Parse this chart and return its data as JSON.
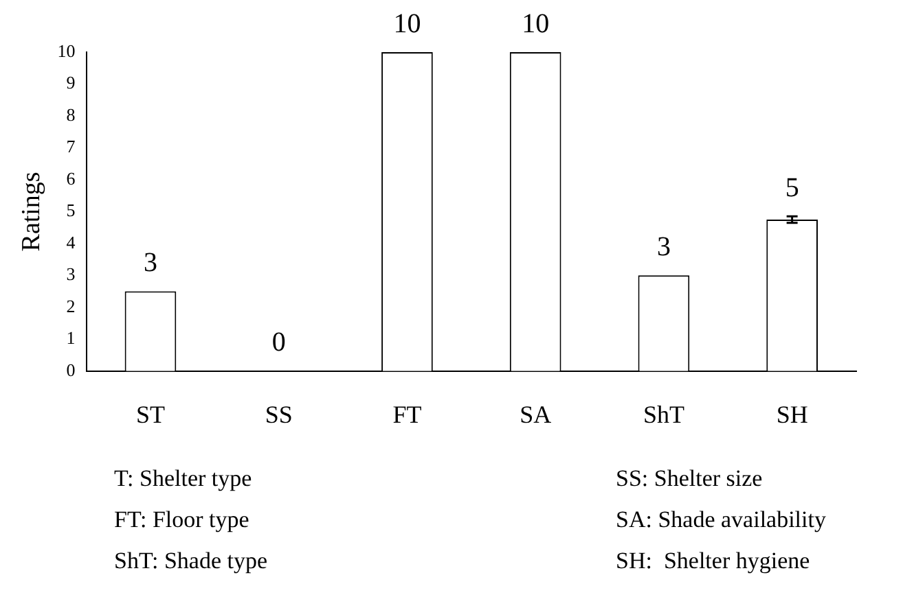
{
  "chart_data": {
    "type": "bar",
    "ylabel": "Ratings",
    "categories": [
      "ST",
      "SS",
      "FT",
      "SA",
      "ShT",
      "SH"
    ],
    "values": [
      2.5,
      0,
      10,
      10,
      3,
      4.75
    ],
    "errors": [
      null,
      null,
      null,
      null,
      null,
      0.1
    ],
    "value_labels": [
      "3",
      "0",
      "10",
      "10",
      "3",
      "5"
    ],
    "color": "#ffffff",
    "ylim": [
      0,
      10
    ],
    "yticks": [
      0,
      1,
      2,
      3,
      4,
      5,
      6,
      7,
      8,
      9,
      10
    ],
    "grid": false,
    "legend": false,
    "annotations": [
      "T: Shelter type",
      "SS: Shelter size",
      "FT: Floor type",
      "SA: Shade availability",
      "ShT: Shade type",
      "SH:  Shelter hygiene"
    ]
  }
}
